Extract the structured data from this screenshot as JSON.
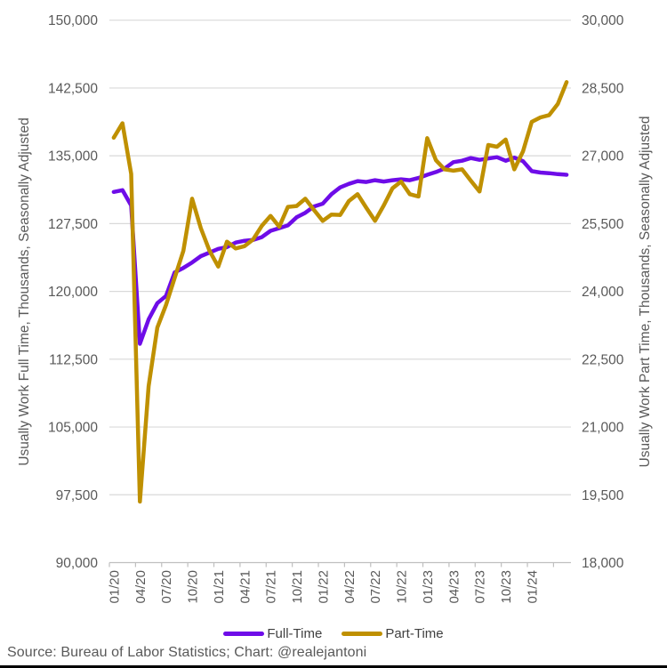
{
  "chart_data": {
    "type": "line",
    "title": "",
    "x_months": [
      "01/20",
      "02/20",
      "03/20",
      "04/20",
      "05/20",
      "06/20",
      "07/20",
      "08/20",
      "09/20",
      "10/20",
      "11/20",
      "12/20",
      "01/21",
      "02/21",
      "03/21",
      "04/21",
      "05/21",
      "06/21",
      "07/21",
      "08/21",
      "09/21",
      "10/21",
      "11/21",
      "12/21",
      "01/22",
      "02/22",
      "03/22",
      "04/22",
      "05/22",
      "06/22",
      "07/22",
      "08/22",
      "09/22",
      "10/22",
      "11/22",
      "12/22",
      "01/23",
      "02/23",
      "03/23",
      "04/23",
      "05/23",
      "06/23",
      "07/23",
      "08/23",
      "09/23",
      "10/23",
      "11/23",
      "12/23",
      "01/24",
      "02/24",
      "03/24",
      "04/24",
      "05/24"
    ],
    "x_axis_tick_labels": [
      "01/20",
      "04/20",
      "07/20",
      "10/20",
      "01/21",
      "04/21",
      "07/21",
      "10/21",
      "01/22",
      "04/22",
      "07/22",
      "10/22",
      "01/23",
      "04/23",
      "07/23",
      "10/23",
      "01/24"
    ],
    "series": [
      {
        "name": "Full-Time",
        "axis": "left",
        "color": "#6E0CE8",
        "values": [
          131000,
          131200,
          129500,
          114200,
          116900,
          118700,
          119500,
          122100,
          122600,
          123200,
          123900,
          124300,
          124700,
          124900,
          125400,
          125600,
          125700,
          126000,
          126700,
          127000,
          127300,
          128200,
          128700,
          129400,
          129700,
          130750,
          131500,
          131900,
          132200,
          132100,
          132300,
          132150,
          132300,
          132400,
          132300,
          132550,
          132900,
          133200,
          133600,
          134300,
          134450,
          134750,
          134550,
          134700,
          134850,
          134450,
          134800,
          134400,
          133300,
          133150,
          133080,
          132970,
          132900
        ]
      },
      {
        "name": "Part-Time",
        "axis": "right",
        "color": "#BF9000",
        "values": [
          27400,
          27720,
          26600,
          19350,
          21900,
          23200,
          23700,
          24300,
          24900,
          26050,
          25400,
          24900,
          24550,
          25100,
          24950,
          25000,
          25150,
          25450,
          25670,
          25430,
          25870,
          25890,
          26050,
          25800,
          25560,
          25700,
          25690,
          26000,
          26150,
          25850,
          25560,
          25900,
          26280,
          26430,
          26150,
          26100,
          27390,
          26900,
          26700,
          26670,
          26700,
          26450,
          26210,
          27240,
          27200,
          27360,
          26700,
          27100,
          27750,
          27850,
          27900,
          28150,
          28630
        ]
      }
    ],
    "left_axis": {
      "title": "Usually Work Full Time, Thousands, Seasonally Adjusted",
      "min": 90000,
      "max": 150000,
      "step": 7500,
      "tick_labels": [
        "150,000",
        "142,500",
        "135,000",
        "127,500",
        "120,000",
        "112,500",
        "105,000",
        "97,500",
        "90,000"
      ]
    },
    "right_axis": {
      "title": "Usually Work Part Time, Thousands, Seasonally Adjusted",
      "min": 18000,
      "max": 30000,
      "step": 1500,
      "tick_labels": [
        "30,000",
        "28,500",
        "27,000",
        "25,500",
        "24,000",
        "22,500",
        "21,000",
        "19,500",
        "18,000"
      ]
    },
    "grid": true,
    "legend_position": "bottom"
  },
  "legend": {
    "full_time": "Full-Time",
    "part_time": "Part-Time"
  },
  "source_note": "Source: Bureau of Labor Statistics; Chart: @realejantoni",
  "colors": {
    "full_time": "#6E0CE8",
    "part_time": "#BF9000",
    "grid": "#D9D9D9",
    "axis_line": "#BFBFBF",
    "tick_text": "#595959",
    "title_text": "#595959",
    "legend_text": "#404040",
    "source_text": "#595959",
    "border_bottom": "#000000",
    "background": "#FFFFFF"
  }
}
